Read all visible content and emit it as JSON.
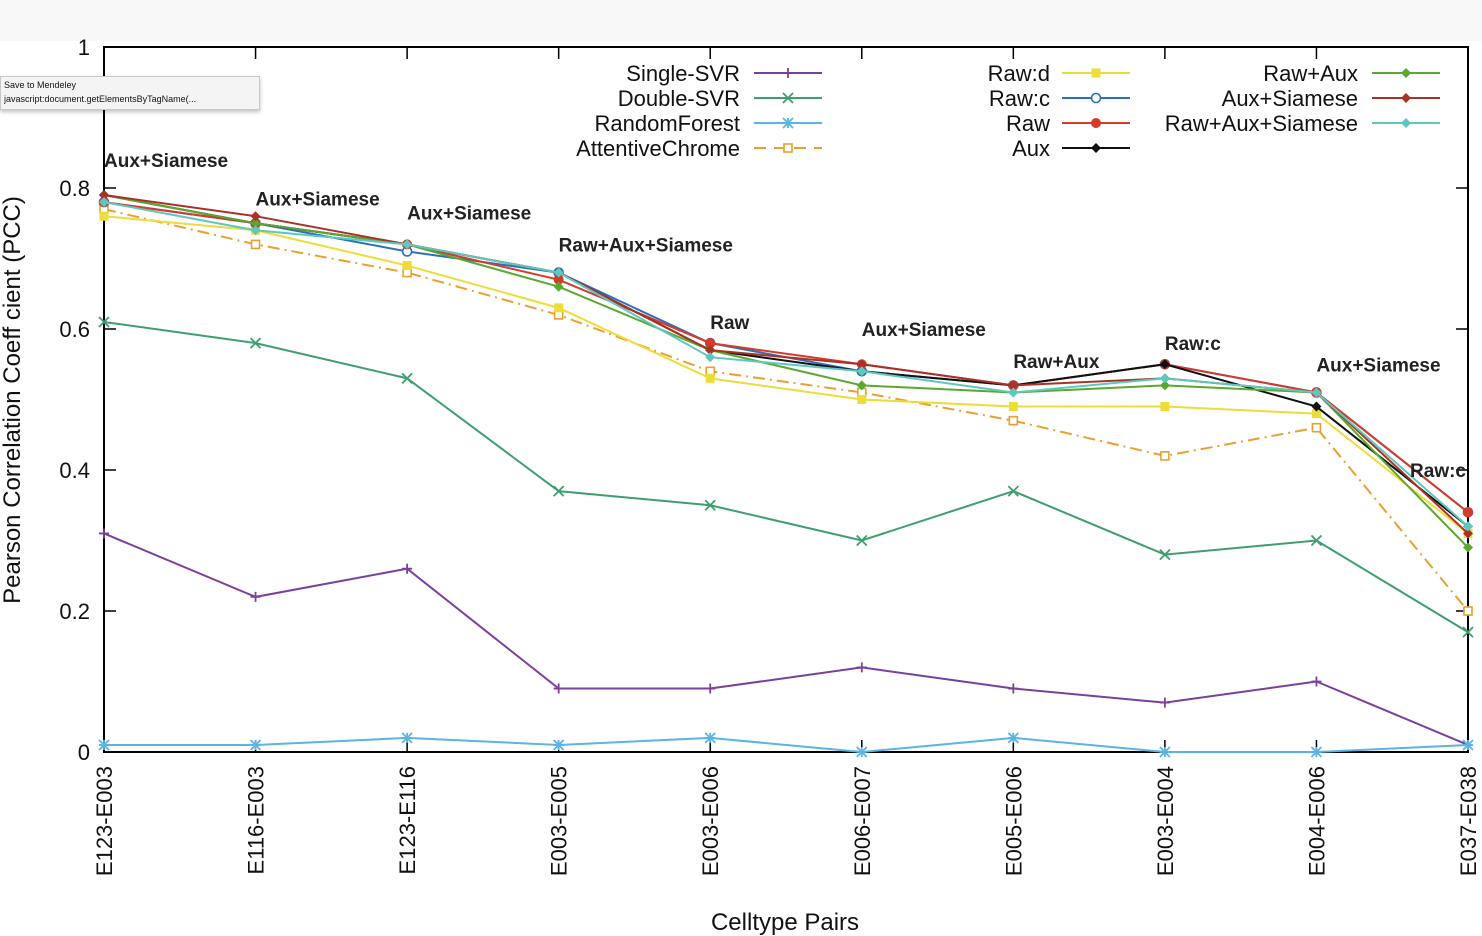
{
  "tooltip": {
    "title": "Save to Mendeley",
    "url": "javascript:document.getElementsByTagName(..."
  },
  "chart_data": {
    "type": "line",
    "xlabel": "Celltype Pairs",
    "ylabel": "Pearson Correlation Coeff cient (PCC)",
    "ylim": [
      0,
      1
    ],
    "yticks": [
      {
        "value": 0,
        "label": "0"
      },
      {
        "value": 0.2,
        "label": "0.2"
      },
      {
        "value": 0.4,
        "label": "0.4"
      },
      {
        "value": 0.6,
        "label": "0.6"
      },
      {
        "value": 0.8,
        "label": "0.8"
      },
      {
        "value": 1,
        "label": "1"
      }
    ],
    "grid": false,
    "legend_position": "top",
    "categories": [
      "E123-E003",
      "E116-E003",
      "E123-E116",
      "E003-E005",
      "E003-E006",
      "E006-E007",
      "E005-E006",
      "E003-E004",
      "E004-E006",
      "E037-E038"
    ],
    "series": [
      {
        "name": "Single-SVR",
        "color": "#7b3f9e",
        "marker": "plus",
        "dash": "solid",
        "legend_col": 0,
        "legend_row": 0,
        "values": [
          0.31,
          0.22,
          0.26,
          0.09,
          0.09,
          0.12,
          0.09,
          0.07,
          0.1,
          0.01
        ]
      },
      {
        "name": "Double-SVR",
        "color": "#3f9e6e",
        "marker": "cross",
        "dash": "solid",
        "legend_col": 0,
        "legend_row": 1,
        "values": [
          0.61,
          0.58,
          0.53,
          0.37,
          0.35,
          0.3,
          0.37,
          0.28,
          0.3,
          0.17
        ]
      },
      {
        "name": "RandomForest",
        "color": "#5ab4e6",
        "marker": "star",
        "dash": "solid",
        "legend_col": 0,
        "legend_row": 2,
        "values": [
          0.01,
          0.01,
          0.02,
          0.01,
          0.02,
          0.0,
          0.02,
          0.0,
          0.0,
          0.01
        ]
      },
      {
        "name": "AttentiveChrome",
        "color": "#e8a030",
        "marker": "square-open",
        "dash": "dashdot",
        "legend_col": 0,
        "legend_row": 3,
        "values": [
          0.77,
          0.72,
          0.68,
          0.62,
          0.54,
          0.51,
          0.47,
          0.42,
          0.46,
          0.2
        ]
      },
      {
        "name": "Raw:d",
        "color": "#eedc3a",
        "marker": "square",
        "dash": "solid",
        "legend_col": 1,
        "legend_row": 0,
        "values": [
          0.76,
          0.74,
          0.69,
          0.63,
          0.53,
          0.5,
          0.49,
          0.49,
          0.48,
          0.31
        ]
      },
      {
        "name": "Raw:c",
        "color": "#2c6fb8",
        "marker": "circle-open",
        "dash": "solid",
        "legend_col": 1,
        "legend_row": 1,
        "values": [
          0.78,
          0.75,
          0.71,
          0.68,
          0.58,
          0.54,
          0.52,
          0.55,
          0.51,
          0.34
        ]
      },
      {
        "name": "Raw",
        "color": "#d63a2a",
        "marker": "circle",
        "dash": "solid",
        "legend_col": 1,
        "legend_row": 2,
        "values": [
          0.78,
          0.75,
          0.72,
          0.67,
          0.58,
          0.55,
          0.52,
          0.55,
          0.51,
          0.34
        ]
      },
      {
        "name": "Aux",
        "color": "#111111",
        "marker": "diamond",
        "dash": "solid",
        "legend_col": 1,
        "legend_row": 3,
        "values": [
          0.79,
          0.75,
          0.72,
          0.68,
          0.57,
          0.54,
          0.52,
          0.55,
          0.49,
          0.32
        ]
      },
      {
        "name": "Raw+Aux",
        "color": "#5aa830",
        "marker": "diamond",
        "dash": "solid",
        "legend_col": 2,
        "legend_row": 0,
        "values": [
          0.79,
          0.75,
          0.72,
          0.66,
          0.57,
          0.52,
          0.51,
          0.52,
          0.51,
          0.29
        ]
      },
      {
        "name": "Aux+Siamese",
        "color": "#a83228",
        "marker": "diamond",
        "dash": "solid",
        "legend_col": 2,
        "legend_row": 1,
        "values": [
          0.79,
          0.76,
          0.72,
          0.68,
          0.57,
          0.55,
          0.52,
          0.53,
          0.51,
          0.31
        ]
      },
      {
        "name": "Raw+Aux+Siamese",
        "color": "#5ec8c0",
        "marker": "diamond",
        "dash": "solid",
        "legend_col": 2,
        "legend_row": 2,
        "values": [
          0.78,
          0.74,
          0.72,
          0.68,
          0.56,
          0.54,
          0.51,
          0.53,
          0.51,
          0.32
        ]
      }
    ],
    "annotations": [
      {
        "text": "Aux+Siamese",
        "category_index": 0,
        "y": 0.83
      },
      {
        "text": "Aux+Siamese",
        "category_index": 1,
        "y": 0.775
      },
      {
        "text": "Aux+Siamese",
        "category_index": 2,
        "y": 0.755
      },
      {
        "text": "Raw+Aux+Siamese",
        "category_index": 3,
        "y": 0.71
      },
      {
        "text": "Raw",
        "category_index": 4,
        "y": 0.6
      },
      {
        "text": "Aux+Siamese",
        "category_index": 5,
        "y": 0.59
      },
      {
        "text": "Raw+Aux",
        "category_index": 6,
        "y": 0.545
      },
      {
        "text": "Raw:c",
        "category_index": 7,
        "y": 0.57
      },
      {
        "text": "Aux+Siamese",
        "category_index": 8,
        "y": 0.54
      },
      {
        "text": "Raw:c",
        "category_index": 9,
        "y": 0.39
      }
    ]
  }
}
